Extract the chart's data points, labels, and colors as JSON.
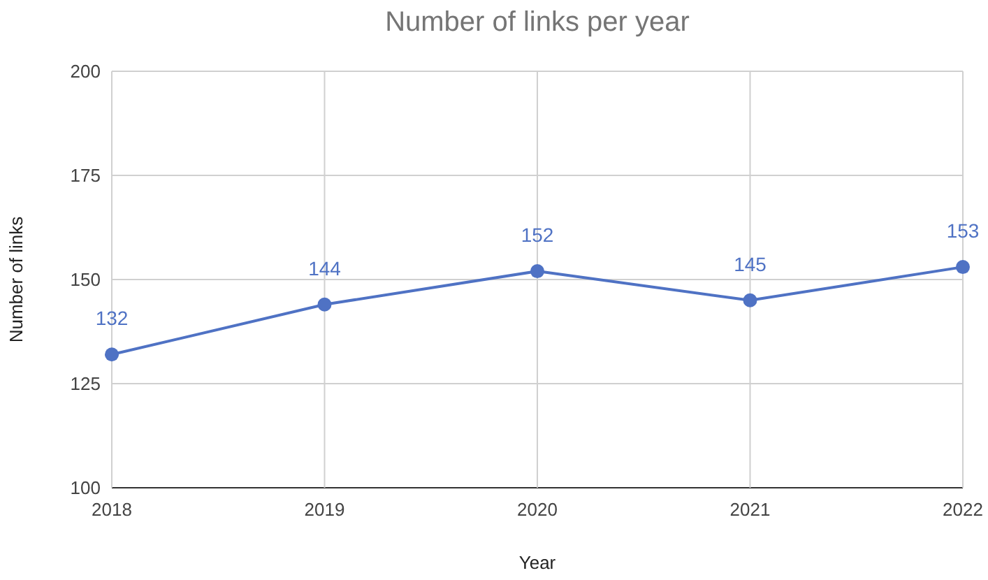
{
  "chart_data": {
    "type": "line",
    "title": "Number of links per year",
    "xlabel": "Year",
    "ylabel": "Number of links",
    "categories": [
      "2018",
      "2019",
      "2020",
      "2021",
      "2022"
    ],
    "series": [
      {
        "color": "#4f72c4",
        "values": [
          132,
          144,
          152,
          145,
          153
        ]
      }
    ],
    "ylim": [
      100,
      200
    ],
    "yticks": [
      100,
      125,
      150,
      175,
      200
    ],
    "grid": true,
    "marker": "circle",
    "data_labels": true,
    "line_style": "solid"
  }
}
